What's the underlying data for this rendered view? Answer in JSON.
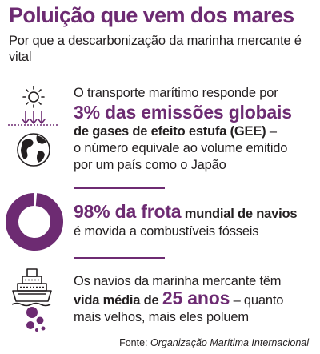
{
  "header": {
    "title": "Poluição que vem dos mares",
    "subtitle": "Por que a descarbonização da marinha mercante é vital"
  },
  "section_emissions": {
    "icon": "sun-earth-emissions-icon",
    "line1": "O transporte marítimo responde por",
    "highlight": "3% das emissões globais",
    "line3_bold": "de gases de efeito estufa (GEE)",
    "line3_rest": " –",
    "line4": "o número equivale ao volume emitido",
    "line5": "por um país como o Japão"
  },
  "section_fleet": {
    "icon": "donut-chart-icon",
    "donut_value_percent": 98,
    "highlight": "98% da frota",
    "line1_bold": " mundial de navios",
    "line2": "é movida a combustíveis fósseis"
  },
  "section_age": {
    "icon": "ship-pollution-icon",
    "line1": "Os navios da marinha mercante têm",
    "bold_part": "vida média de ",
    "highlight": "25 anos",
    "rest": " – quanto",
    "line3": "mais velhos, mais eles poluem"
  },
  "footer": {
    "source_label": "Fonte: ",
    "source_name": "Organização Marítima Internacional"
  },
  "colors": {
    "accent": "#6d2b72",
    "text": "#231f20"
  }
}
